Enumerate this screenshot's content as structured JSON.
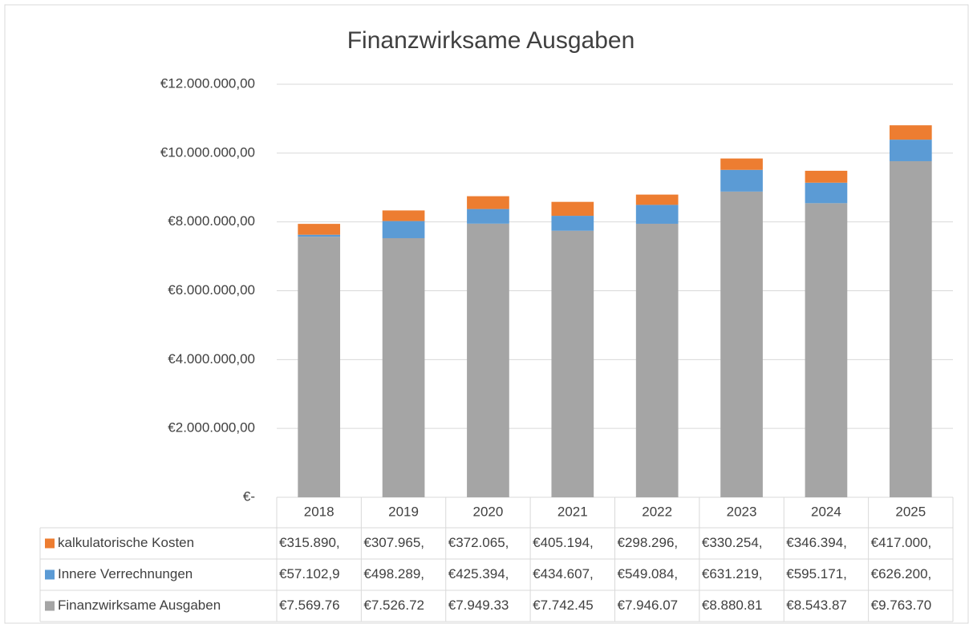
{
  "chart_data": {
    "type": "stacked_bar",
    "title": "Finanzwirksame Ausgaben",
    "categories": [
      "2018",
      "2019",
      "2020",
      "2021",
      "2022",
      "2023",
      "2024",
      "2025"
    ],
    "series": [
      {
        "name": "Finanzwirksame Ausgaben",
        "color": "#a5a5a5",
        "values": [
          7569760,
          7526720,
          7949330,
          7742450,
          7946070,
          8880810,
          8543870,
          9763700
        ],
        "value_labels": [
          "€7.569.76",
          "€7.526.72",
          "€7.949.33",
          "€7.742.45",
          "€7.946.07",
          "€8.880.81",
          "€8.543.87",
          "€9.763.70"
        ]
      },
      {
        "name": "Innere Verrechnungen",
        "color": "#5b9bd5",
        "values": [
          57102.9,
          498289,
          425394,
          434607,
          549084,
          631219,
          595171,
          626200
        ],
        "value_labels": [
          "€57.102,9",
          "€498.289,",
          "€425.394,",
          "€434.607,",
          "€549.084,",
          "€631.219,",
          "€595.171,",
          "€626.200,"
        ]
      },
      {
        "name": "kalkulatorische Kosten",
        "color": "#ed7d31",
        "values": [
          315890,
          307965,
          372065,
          405194,
          298296,
          330254,
          346394,
          417000
        ],
        "value_labels": [
          "€315.890,",
          "€307.965,",
          "€372.065,",
          "€405.194,",
          "€298.296,",
          "€330.254,",
          "€346.394,",
          "€417.000,"
        ]
      }
    ],
    "ylim": [
      0,
      12000000
    ],
    "yticks": [
      {
        "value": 0,
        "label": "€-"
      },
      {
        "value": 2000000,
        "label": "€2.000.000,00"
      },
      {
        "value": 4000000,
        "label": "€4.000.000,00"
      },
      {
        "value": 6000000,
        "label": "€6.000.000,00"
      },
      {
        "value": 8000000,
        "label": "€8.000.000,00"
      },
      {
        "value": 10000000,
        "label": "€10.000.000,00"
      },
      {
        "value": 12000000,
        "label": "€12.000.000,00"
      }
    ],
    "grid": true
  }
}
